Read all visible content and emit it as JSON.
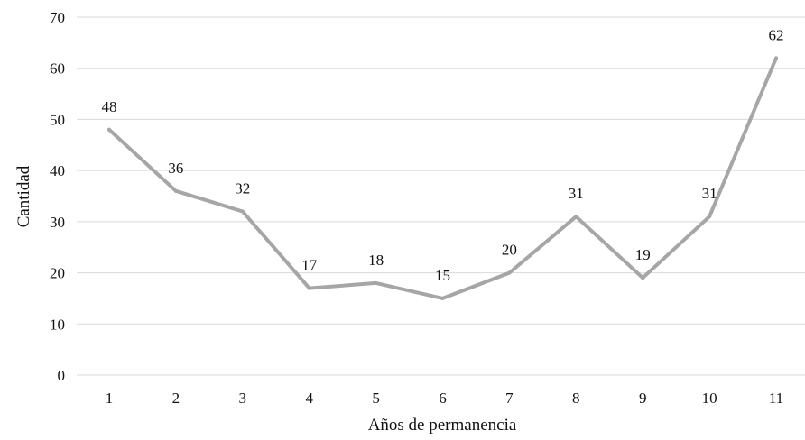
{
  "chart_data": {
    "type": "line",
    "title": "",
    "xlabel": "Años de permanencia",
    "ylabel": "Cantidad",
    "x": [
      "1",
      "2",
      "3",
      "4",
      "5",
      "6",
      "7",
      "8",
      "9",
      "10",
      "11"
    ],
    "series": [
      {
        "values": [
          48,
          36,
          32,
          17,
          18,
          15,
          20,
          31,
          19,
          31,
          62
        ],
        "color": "#a6a6a6"
      }
    ],
    "ylim": [
      0,
      70
    ],
    "yticks": [
      0,
      10,
      20,
      30,
      40,
      50,
      60,
      70
    ],
    "grid": true,
    "gridColor": "#d9d9d9",
    "legend": "none",
    "data_labels": true
  }
}
